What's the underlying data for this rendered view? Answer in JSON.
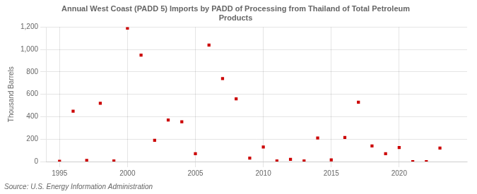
{
  "chart_data": {
    "type": "scatter",
    "title": "Annual West Coast (PADD 5) Imports by PADD of Processing from Thailand of Total Petroleum\nProducts",
    "ylabel": "Thousand Barrels",
    "source": "Source: U.S. Energy Information Administration",
    "x": [
      1995,
      1996,
      1997,
      1998,
      1999,
      2000,
      2001,
      2002,
      2003,
      2004,
      2005,
      2006,
      2007,
      2008,
      2009,
      2010,
      2011,
      2012,
      2013,
      2014,
      2015,
      2016,
      2017,
      2018,
      2019,
      2020,
      2021,
      2022,
      2023
    ],
    "values": [
      2,
      450,
      10,
      520,
      5,
      1190,
      950,
      190,
      370,
      355,
      70,
      1040,
      740,
      560,
      30,
      130,
      5,
      20,
      5,
      210,
      15,
      215,
      530,
      140,
      70,
      125,
      0,
      0,
      120
    ],
    "color": "#cc0000",
    "marker": "square",
    "xlim": [
      1994,
      2025
    ],
    "xticks": [
      1995,
      2000,
      2005,
      2010,
      2015,
      2020
    ],
    "ylim": [
      0,
      1200
    ],
    "yticks": [
      0,
      200,
      400,
      600,
      800,
      {
        "value": 1000,
        "label": "1,000"
      },
      {
        "value": 1200,
        "label": "1,200"
      }
    ],
    "grid": true
  }
}
